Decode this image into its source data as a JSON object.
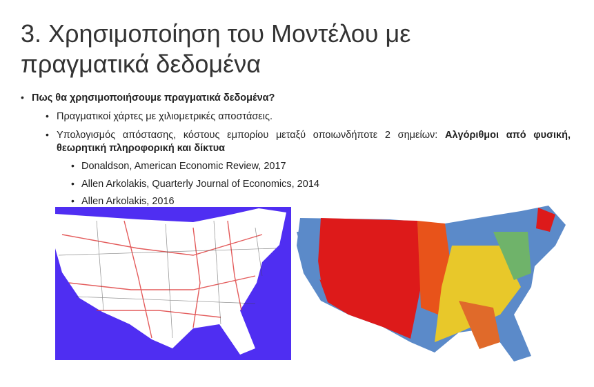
{
  "header": {
    "title_lines": [
      "3. Χρησιμοποίηση του Μοντέλου με",
      "πραγματικά δεδομένα"
    ]
  },
  "bullets": {
    "level1": "Πως θα χρησιμοποιήσουμε πραγματικά δεδομένα?",
    "level2": [
      {
        "parts": [
          {
            "text": "Πραγματικοί χάρτες με χιλιομετρικές αποστάσεις.",
            "bold": false
          }
        ]
      },
      {
        "parts": [
          {
            "text": "Υπολογισμός απόστασης, κόστους εμπορίου μεταξύ οποιωνδήποτε 2 σημείων: ",
            "bold": false
          },
          {
            "text": "Αλγόριθμοι από φυσική, θεωρητική πληροφορική και δίκτυα",
            "bold": true
          }
        ]
      }
    ],
    "level3": [
      "Donaldson, American Economic Review, 2017",
      "Allen Arkolakis, Quarterly Journal of Economics, 2014",
      "Allen Arkolakis, 2016"
    ]
  }
}
